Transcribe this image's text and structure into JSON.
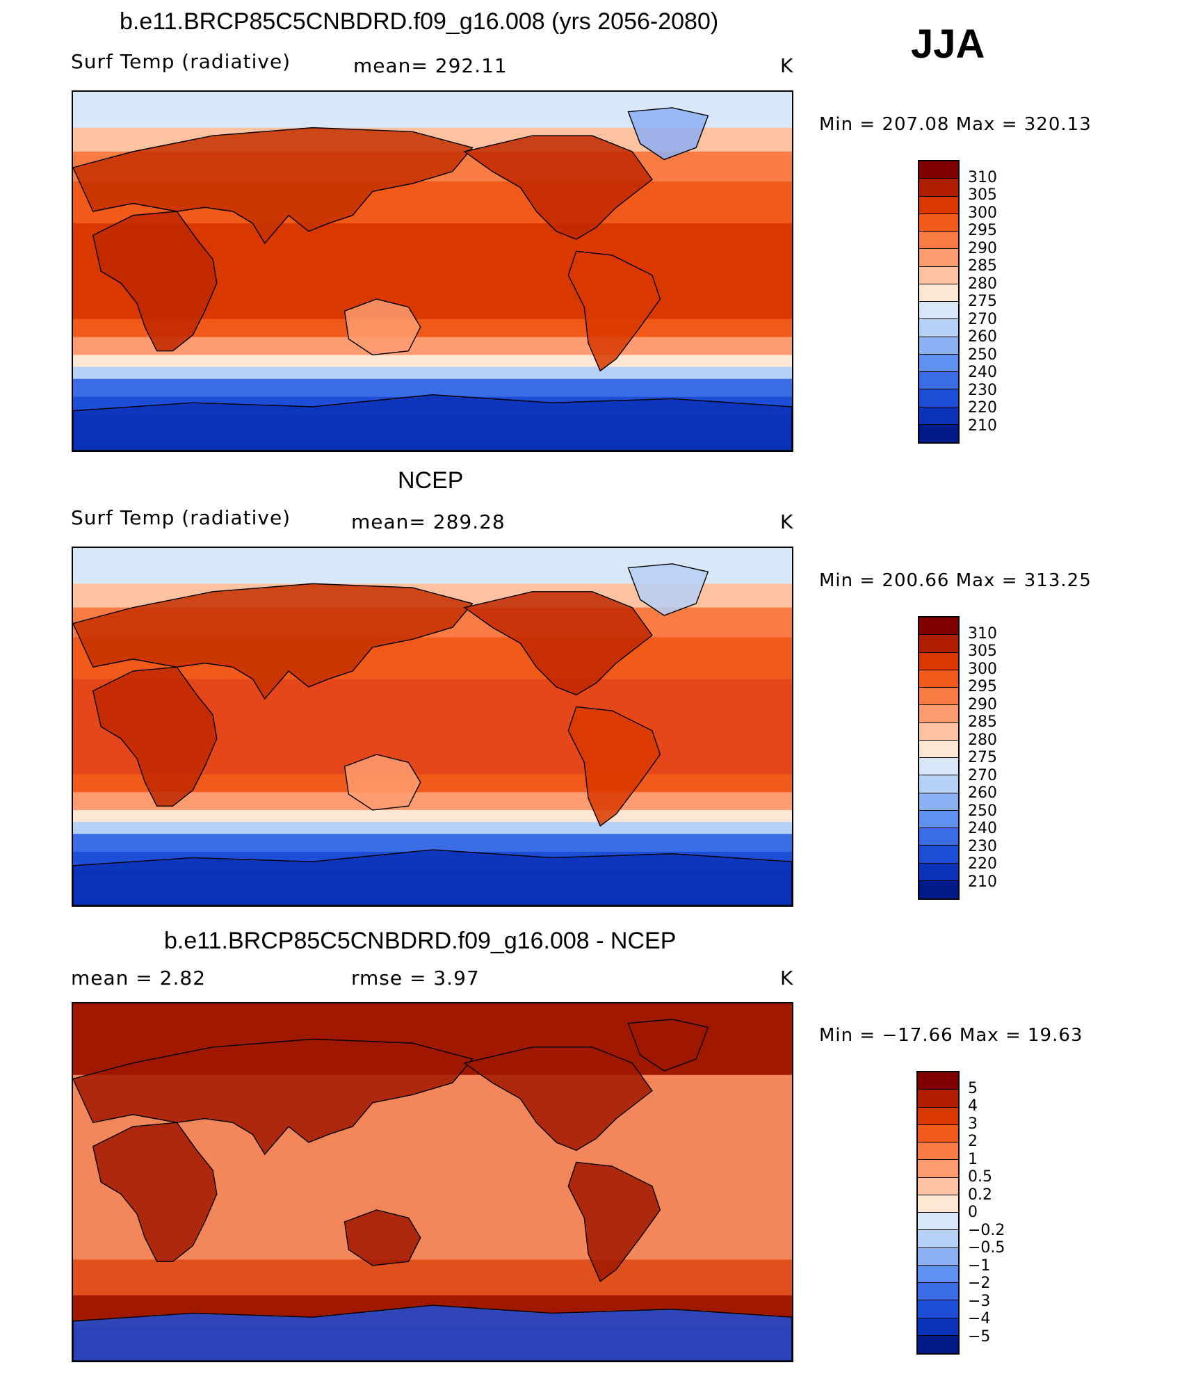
{
  "season": "JJA",
  "panels": [
    {
      "title": "b.e11.BRCP85C5CNBDRD.f09_g16.008 (yrs 2056-2080)",
      "left_label": "Surf Temp  (radiative)",
      "center_label": "mean=  292.11",
      "units": "K",
      "minmax": "Min  =  207.08  Max  =  320.13",
      "map_type": "model",
      "colorbar": {
        "colors": [
          "#800000",
          "#b01e00",
          "#d93800",
          "#f25a1a",
          "#fa7c45",
          "#fc9c70",
          "#fdc3a0",
          "#fde6d2",
          "#d8e8f8",
          "#b6d0f6",
          "#8cb0f4",
          "#6090f0",
          "#3a6ce6",
          "#1c4ed8",
          "#0a32b8",
          "#001a8a"
        ],
        "labels": [
          "310",
          "305",
          "300",
          "295",
          "290",
          "285",
          "280",
          "275",
          "270",
          "260",
          "250",
          "240",
          "230",
          "220",
          "210"
        ]
      }
    },
    {
      "title": "NCEP",
      "left_label": "Surf Temp  (radiative)",
      "center_label": "mean=  289.28",
      "units": "K",
      "minmax": "Min  =  200.66  Max  =  313.25",
      "map_type": "obs",
      "colorbar": {
        "colors": [
          "#800000",
          "#b01e00",
          "#d93800",
          "#f25a1a",
          "#fa7c45",
          "#fc9c70",
          "#fdc3a0",
          "#fde6d2",
          "#d8e8f8",
          "#b6d0f6",
          "#8cb0f4",
          "#6090f0",
          "#3a6ce6",
          "#1c4ed8",
          "#0a32b8",
          "#001a8a"
        ],
        "labels": [
          "310",
          "305",
          "300",
          "295",
          "290",
          "285",
          "280",
          "275",
          "270",
          "260",
          "250",
          "240",
          "230",
          "220",
          "210"
        ]
      }
    },
    {
      "title": "b.e11.BRCP85C5CNBDRD.f09_g16.008 - NCEP",
      "left_label": "mean  =      2.82",
      "center_label": "rmse  =      3.97",
      "units": "K",
      "minmax": "Min  =  −17.66  Max  =    19.63",
      "map_type": "diff",
      "colorbar": {
        "colors": [
          "#800000",
          "#b01e00",
          "#d93800",
          "#f25a1a",
          "#fa7c45",
          "#fc9c70",
          "#fdc3a0",
          "#fde6d2",
          "#d8e8f8",
          "#b6d0f6",
          "#8cb0f4",
          "#6090f0",
          "#3a6ce6",
          "#1c4ed8",
          "#0a32b8",
          "#001a8a"
        ],
        "labels": [
          "5",
          "4",
          "3",
          "2",
          "1",
          "0.5",
          "0.2",
          "0",
          "−0.2",
          "−0.5",
          "−1",
          "−2",
          "−3",
          "−4",
          "−5"
        ]
      }
    }
  ]
}
